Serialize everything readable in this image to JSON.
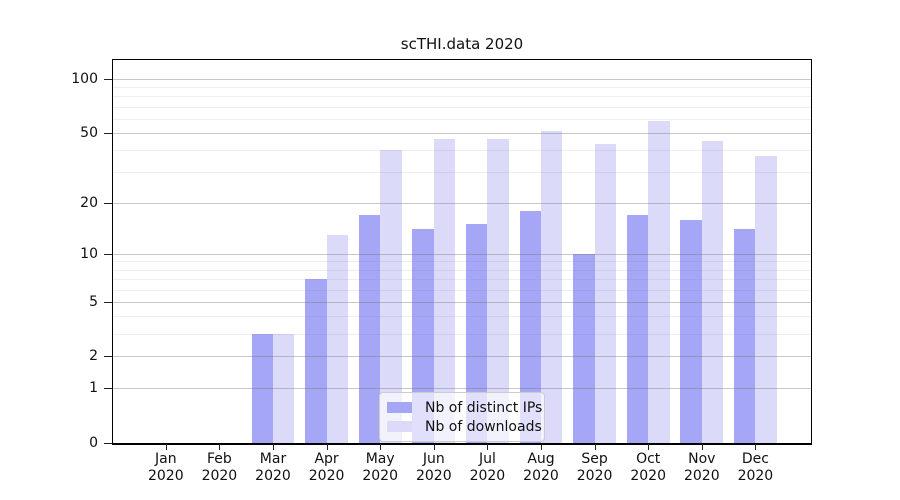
{
  "chart_data": {
    "type": "bar",
    "title": "scTHI.data 2020",
    "categories": [
      "Jan 2020",
      "Feb 2020",
      "Mar 2020",
      "Apr 2020",
      "May 2020",
      "Jun 2020",
      "Jul 2020",
      "Aug 2020",
      "Sep 2020",
      "Oct 2020",
      "Nov 2020",
      "Dec 2020"
    ],
    "series": [
      {
        "name": "Nb of distinct IPs",
        "color": "#a6a6f6",
        "values": [
          0,
          0,
          3,
          7,
          17,
          14,
          15,
          18,
          10,
          17,
          16,
          14
        ]
      },
      {
        "name": "Nb of downloads",
        "color": "#dbdbf9",
        "values": [
          0,
          0,
          3,
          13,
          40,
          46,
          46,
          51,
          43,
          58,
          45,
          37
        ]
      }
    ],
    "yscale": "log1p",
    "ylim": [
      0,
      128
    ],
    "yticks": [
      0,
      1,
      2,
      5,
      10,
      20,
      50,
      100
    ],
    "minor_gridlines": [
      3,
      4,
      6,
      7,
      8,
      9,
      30,
      40,
      60,
      70,
      80,
      90
    ],
    "grid": "on",
    "legend_position": "inside-bottom-center"
  }
}
